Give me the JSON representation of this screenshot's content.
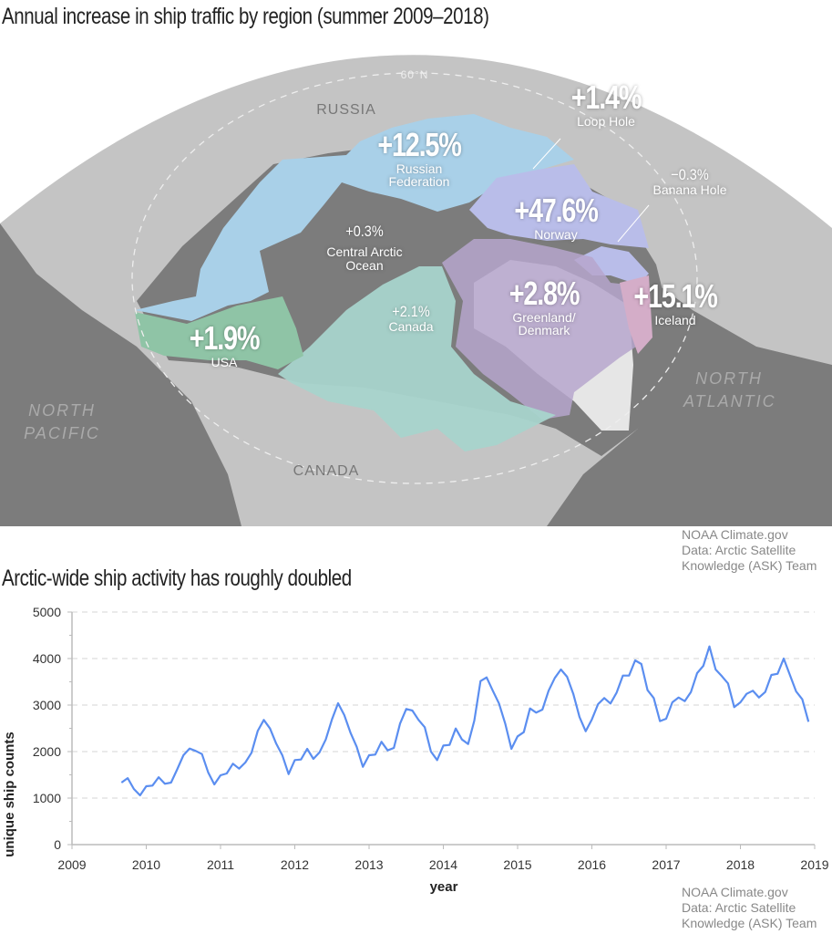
{
  "map": {
    "title": "Annual increase in ship traffic by region (summer 2009–2018)",
    "parallel_label": "60°N",
    "place_labels": {
      "russia": "RUSSIA",
      "canada": "CANADA",
      "north_pacific": "NORTH PACIFIC",
      "north_atlantic": "NORTH ATLANTIC"
    },
    "regions": [
      {
        "name": "Russian Federation",
        "change": "+12.5%",
        "color": "#a9d0e8"
      },
      {
        "name": "Loop Hole",
        "change": "+1.4%",
        "color": "#7c7c7c"
      },
      {
        "name": "Norway",
        "change": "+47.6%",
        "color": "#b9bde9"
      },
      {
        "name": "Banana Hole",
        "change": "−0.3%",
        "color": "#b9bde9"
      },
      {
        "name": "Central Arctic Ocean",
        "change": "+0.3%",
        "color": "#7c7c7c"
      },
      {
        "name": "Greenland/ Denmark",
        "change": "+2.8%",
        "color": "#b6a6cd"
      },
      {
        "name": "Iceland",
        "change": "+15.1%",
        "color": "#d4adc8"
      },
      {
        "name": "Canada",
        "change": "+2.1%",
        "color": "#a8d4cc"
      },
      {
        "name": "USA",
        "change": "+1.9%",
        "color": "#8fc4a6"
      }
    ],
    "credit": [
      "NOAA Climate.gov",
      "Data: Arctic Satellite",
      "Knowledge (ASK) Team"
    ]
  },
  "chart_data": {
    "type": "line",
    "title": "Arctic-wide ship activity has roughly doubled",
    "xlabel": "year",
    "ylabel": "unique ship counts",
    "xlim": [
      2009,
      2019
    ],
    "ylim": [
      0,
      5000
    ],
    "x_ticks": [
      "2009",
      "2010",
      "2011",
      "2012",
      "2013",
      "2014",
      "2015",
      "2016",
      "2017",
      "2018",
      "2019"
    ],
    "y_ticks": [
      "0",
      "1000",
      "2000",
      "3000",
      "4000",
      "5000"
    ],
    "grid": "horizontal dashed",
    "line_color": "#5b8ef0",
    "x_start": "2009-09",
    "x_step": "monthly",
    "values": [
      1333,
      1430,
      1196,
      1059,
      1255,
      1268,
      1450,
      1307,
      1333,
      1620,
      1922,
      2065,
      2013,
      1947,
      1555,
      1294,
      1490,
      1530,
      1739,
      1634,
      1765,
      1974,
      2444,
      2680,
      2497,
      2170,
      1915,
      1516,
      1817,
      1830,
      2059,
      1843,
      1987,
      2261,
      2693,
      3039,
      2784,
      2405,
      2104,
      1673,
      1922,
      1935,
      2209,
      2026,
      2078,
      2601,
      2915,
      2882,
      2680,
      2523,
      2000,
      1817,
      2130,
      2143,
      2497,
      2261,
      2163,
      2667,
      3516,
      3595,
      3307,
      3033,
      2601,
      2059,
      2327,
      2418,
      2928,
      2837,
      2902,
      3307,
      3582,
      3765,
      3608,
      3242,
      2745,
      2438,
      2693,
      3020,
      3150,
      3033,
      3268,
      3634,
      3634,
      3961,
      3882,
      3320,
      3150,
      2654,
      2706,
      3059,
      3163,
      3085,
      3281,
      3686,
      3843,
      4261,
      3765,
      3621,
      3464,
      2954,
      3059,
      3242,
      3307,
      3163,
      3281,
      3647,
      3673,
      4000,
      3647,
      3294,
      3124,
      2641
    ],
    "credit": [
      "NOAA Climate.gov",
      "Data: Arctic Satellite",
      "Knowledge (ASK) Team"
    ]
  }
}
